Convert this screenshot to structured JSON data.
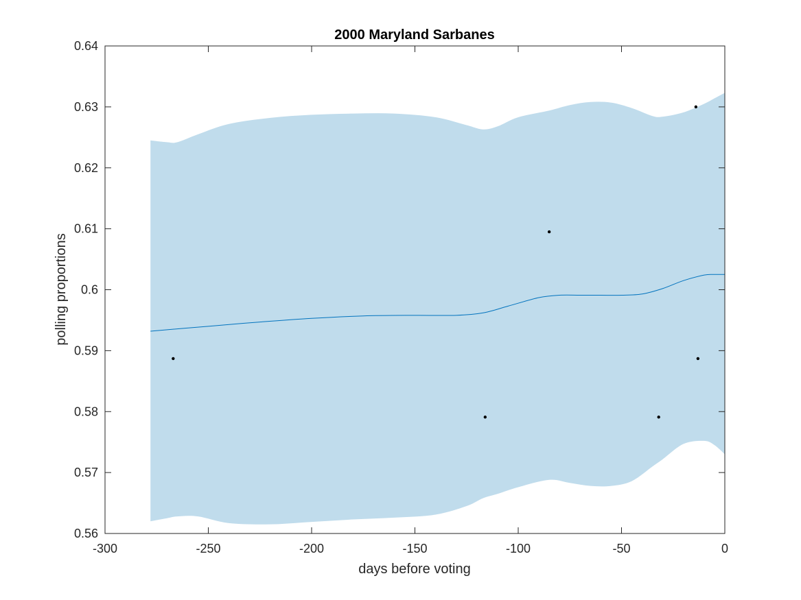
{
  "chart_data": {
    "type": "line",
    "title": "2000 Maryland Sarbanes",
    "xlabel": "days before voting",
    "ylabel": "polling proportions",
    "xlim": [
      -300,
      0
    ],
    "ylim": [
      0.56,
      0.64
    ],
    "xticks": [
      -300,
      -250,
      -200,
      -150,
      -100,
      -50,
      0
    ],
    "xtick_labels": [
      "-300",
      "-250",
      "-200",
      "-150",
      "-100",
      "-50",
      "0"
    ],
    "yticks": [
      0.56,
      0.57,
      0.58,
      0.59,
      0.6,
      0.61,
      0.62,
      0.63,
      0.64
    ],
    "ytick_labels": [
      "0.56",
      "0.57",
      "0.58",
      "0.59",
      "0.6",
      "0.61",
      "0.62",
      "0.63",
      "0.64"
    ],
    "grid": false,
    "band": {
      "x": [
        -278,
        -270,
        -265,
        -255,
        -240,
        -220,
        -200,
        -180,
        -160,
        -140,
        -125,
        -117,
        -110,
        -100,
        -85,
        -75,
        -65,
        -55,
        -45,
        -35,
        -30,
        -20,
        -10,
        -5,
        0
      ],
      "upper": [
        0.6245,
        0.6242,
        0.6242,
        0.6255,
        0.6272,
        0.6282,
        0.6287,
        0.6289,
        0.6289,
        0.6283,
        0.627,
        0.6263,
        0.6268,
        0.6283,
        0.6294,
        0.6303,
        0.6308,
        0.6307,
        0.6298,
        0.6285,
        0.6284,
        0.6291,
        0.6305,
        0.6314,
        0.6323
      ],
      "lower": [
        0.562,
        0.5625,
        0.5628,
        0.5628,
        0.5617,
        0.5615,
        0.5619,
        0.5623,
        0.5626,
        0.5631,
        0.5645,
        0.5658,
        0.5665,
        0.5676,
        0.5688,
        0.5683,
        0.5678,
        0.5678,
        0.5686,
        0.571,
        0.5722,
        0.5747,
        0.5752,
        0.5745,
        0.573
      ],
      "color": "#c0dcec"
    },
    "series": [
      {
        "x": [
          -278,
          -250,
          -225,
          -200,
          -175,
          -150,
          -130,
          -117,
          -105,
          -90,
          -80,
          -70,
          -60,
          -50,
          -40,
          -30,
          -20,
          -10,
          -5,
          0
        ],
        "values": [
          0.5932,
          0.594,
          0.5947,
          0.5953,
          0.5957,
          0.5958,
          0.5958,
          0.5962,
          0.5973,
          0.5987,
          0.5991,
          0.5991,
          0.5991,
          0.5991,
          0.5993,
          0.6002,
          0.6015,
          0.6024,
          0.6025,
          0.6025
        ],
        "color": "#0072bd"
      }
    ],
    "points": {
      "x": [
        -267,
        -116,
        -85,
        -32,
        -14,
        -13
      ],
      "y": [
        0.5887,
        0.5791,
        0.6095,
        0.5791,
        0.63,
        0.5887
      ],
      "color": "#000000"
    }
  }
}
